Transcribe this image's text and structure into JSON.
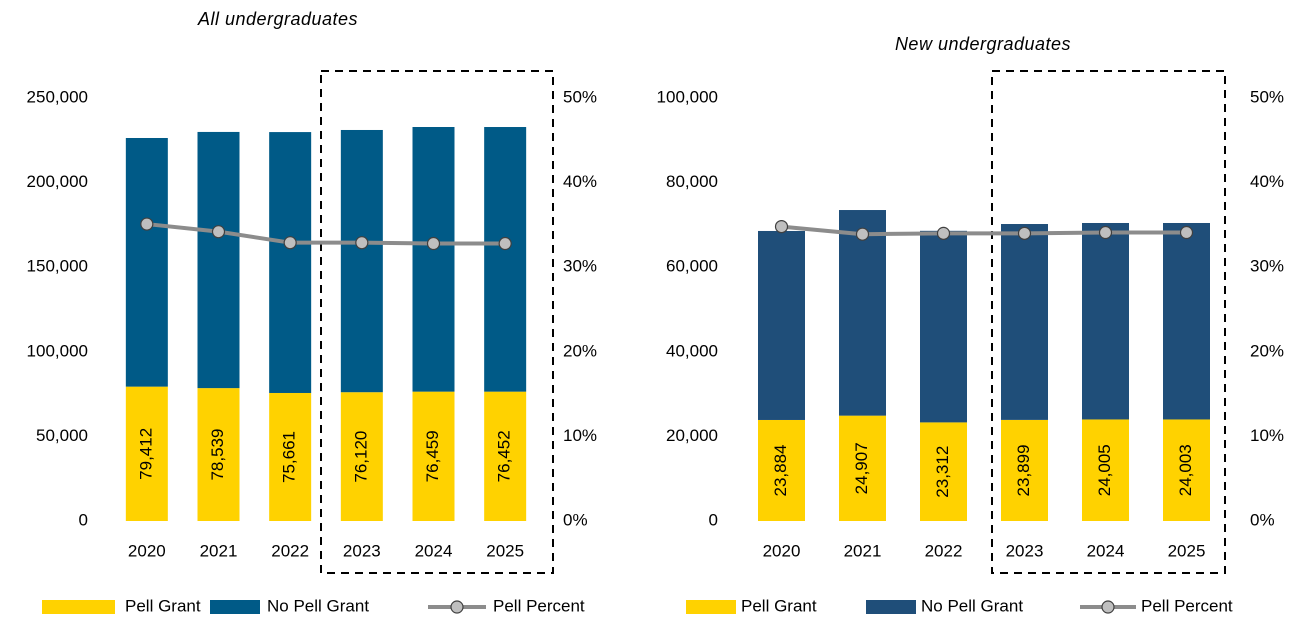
{
  "chart_data": [
    {
      "type": "bar",
      "subtitle": "All undergraduates",
      "categories": [
        "2020",
        "2021",
        "2022",
        "2023",
        "2024",
        "2025"
      ],
      "series": [
        {
          "name": "Pell Grant",
          "color": "#ffd200",
          "values": [
            79412,
            78539,
            75661,
            76120,
            76459,
            76452
          ],
          "value_labels": [
            "79,412",
            "78,539",
            "75,661",
            "76,120",
            "76,459",
            "76,452"
          ]
        },
        {
          "name": "No Pell Grant",
          "color": "#005a87",
          "values": [
            146950,
            151400,
            154200,
            154980,
            156400,
            156400
          ]
        },
        {
          "name": "Pell Percent",
          "type": "line",
          "axis": "y2",
          "color": "#8c8c8c",
          "values": [
            35.1,
            34.2,
            32.9,
            32.9,
            32.8,
            32.8
          ]
        }
      ],
      "ylim": [
        0,
        250000
      ],
      "yticks": [
        0,
        {
          "value": 50000,
          "label": "50,000"
        },
        {
          "value": 100000,
          "label": "100,000"
        },
        {
          "value": 150000,
          "label": "150,000"
        },
        {
          "value": 200000,
          "label": "200,000"
        },
        {
          "value": 250000,
          "label": "250,000"
        }
      ],
      "y2lim": [
        0,
        50
      ],
      "y2ticks": [
        {
          "value": 0,
          "label": "0%"
        },
        {
          "value": 10,
          "label": "10%"
        },
        {
          "value": 20,
          "label": "20%"
        },
        {
          "value": 30,
          "label": "30%"
        },
        {
          "value": 40,
          "label": "40%"
        },
        {
          "value": 50,
          "label": "50%"
        }
      ]
    },
    {
      "type": "bar",
      "subtitle": "New undergraduates",
      "categories": [
        "2020",
        "2021",
        "2022",
        "2023",
        "2024",
        "2025"
      ],
      "series": [
        {
          "name": "Pell Grant",
          "color": "#ffd200",
          "values": [
            23884,
            24907,
            23312,
            23899,
            24005,
            24003
          ],
          "value_labels": [
            "23,884",
            "24,907",
            "23,312",
            "23,899",
            "24,005",
            "24,003"
          ]
        },
        {
          "name": "No Pell Grant",
          "color": "#1f4e79",
          "values": [
            44680,
            48610,
            45290,
            46310,
            46445,
            46447
          ]
        },
        {
          "name": "Pell Percent",
          "type": "line",
          "axis": "y2",
          "color": "#8c8c8c",
          "values": [
            34.8,
            33.9,
            34.0,
            34.0,
            34.1,
            34.1
          ]
        }
      ],
      "ylim": [
        0,
        100000
      ],
      "yticks": [
        0,
        {
          "value": 20000,
          "label": "20,000"
        },
        {
          "value": 40000,
          "label": "40,000"
        },
        {
          "value": 60000,
          "label": "60,000"
        },
        {
          "value": 80000,
          "label": "80,000"
        },
        {
          "value": 100000,
          "label": "100,000"
        }
      ],
      "y2lim": [
        0,
        50
      ],
      "y2ticks": [
        {
          "value": 0,
          "label": "0%"
        },
        {
          "value": 10,
          "label": "10%"
        },
        {
          "value": 20,
          "label": "20%"
        },
        {
          "value": 30,
          "label": "30%"
        },
        {
          "value": 40,
          "label": "40%"
        },
        {
          "value": 50,
          "label": "50%"
        }
      ]
    }
  ]
}
